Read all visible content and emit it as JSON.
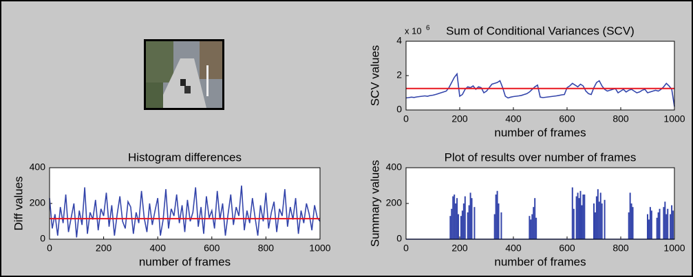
{
  "chart_data": [
    {
      "type": "line",
      "title": "Sum of Conditional Variances (SCV)",
      "xlabel": "number of frames",
      "ylabel": "SCV values",
      "y_scale_label": "x 10",
      "y_scale_exponent": "6",
      "x": [
        0,
        10,
        20,
        30,
        40,
        50,
        60,
        70,
        80,
        90,
        100,
        110,
        120,
        130,
        140,
        150,
        160,
        170,
        180,
        190,
        200,
        210,
        220,
        230,
        240,
        250,
        260,
        270,
        280,
        290,
        300,
        310,
        320,
        330,
        340,
        350,
        360,
        370,
        380,
        390,
        400,
        410,
        420,
        430,
        440,
        450,
        460,
        470,
        480,
        490,
        500,
        510,
        520,
        530,
        540,
        550,
        560,
        570,
        580,
        590,
        600,
        610,
        620,
        630,
        640,
        650,
        660,
        670,
        680,
        690,
        700,
        710,
        720,
        730,
        740,
        750,
        760,
        770,
        780,
        790,
        800,
        810,
        820,
        830,
        840,
        850,
        860,
        870,
        880,
        890,
        900,
        910,
        920,
        930,
        940,
        950,
        960,
        970,
        980,
        990,
        1000
      ],
      "values": [
        0.7,
        0.72,
        0.75,
        0.73,
        0.76,
        0.78,
        0.8,
        0.82,
        0.8,
        0.84,
        0.86,
        0.9,
        0.95,
        1.0,
        1.05,
        1.1,
        1.3,
        1.6,
        1.9,
        2.1,
        0.8,
        0.9,
        1.2,
        1.35,
        1.3,
        1.4,
        1.2,
        1.35,
        1.3,
        1.0,
        1.1,
        1.3,
        1.5,
        1.55,
        1.6,
        1.7,
        1.3,
        0.8,
        0.7,
        0.75,
        0.78,
        0.8,
        0.82,
        0.85,
        0.9,
        0.95,
        1.05,
        1.2,
        1.35,
        1.45,
        0.75,
        0.72,
        0.74,
        0.76,
        0.78,
        0.8,
        0.82,
        0.85,
        0.88,
        0.9,
        1.3,
        1.4,
        1.55,
        1.45,
        1.35,
        1.5,
        1.4,
        1.1,
        0.95,
        0.9,
        1.3,
        1.6,
        1.7,
        1.4,
        1.2,
        1.1,
        1.15,
        1.2,
        1.25,
        1.0,
        1.1,
        1.2,
        1.05,
        1.15,
        1.2,
        1.1,
        1.0,
        1.05,
        1.15,
        1.2,
        1.0,
        1.05,
        1.1,
        1.15,
        1.1,
        1.2,
        1.35,
        1.55,
        1.4,
        1.2,
        0.2
      ],
      "color": "#3344aa",
      "threshold": 1.25,
      "threshold_color": "#e8141e",
      "xlim": [
        0,
        1000
      ],
      "ylim": [
        0,
        4
      ],
      "xticks": [
        0,
        200,
        400,
        600,
        800,
        1000
      ],
      "yticks": [
        0,
        2,
        4
      ]
    },
    {
      "type": "line",
      "title": "Histogram differences",
      "xlabel": "number of frames",
      "ylabel": "Diff values",
      "x": [
        0,
        10,
        20,
        30,
        40,
        50,
        60,
        70,
        80,
        90,
        100,
        110,
        120,
        130,
        140,
        150,
        160,
        170,
        180,
        190,
        200,
        210,
        220,
        230,
        240,
        250,
        260,
        270,
        280,
        290,
        300,
        310,
        320,
        330,
        340,
        350,
        360,
        370,
        380,
        390,
        400,
        410,
        420,
        430,
        440,
        450,
        460,
        470,
        480,
        490,
        500,
        510,
        520,
        530,
        540,
        550,
        560,
        570,
        580,
        590,
        600,
        610,
        620,
        630,
        640,
        650,
        660,
        670,
        680,
        690,
        700,
        710,
        720,
        730,
        740,
        750,
        760,
        770,
        780,
        790,
        800,
        810,
        820,
        830,
        840,
        850,
        860,
        870,
        880,
        890,
        900,
        910,
        920,
        930,
        940,
        950,
        960,
        970,
        980,
        990,
        1000
      ],
      "values": [
        230,
        60,
        140,
        20,
        180,
        90,
        250,
        40,
        120,
        200,
        10,
        160,
        80,
        290,
        30,
        150,
        110,
        220,
        50,
        170,
        130,
        260,
        70,
        190,
        20,
        140,
        240,
        100,
        60,
        210,
        180,
        30,
        150,
        90,
        270,
        120,
        40,
        200,
        80,
        160,
        230,
        20,
        110,
        280,
        60,
        170,
        130,
        250,
        90,
        190,
        40,
        220,
        100,
        150,
        290,
        70,
        180,
        30,
        240,
        120,
        160,
        60,
        270,
        110,
        200,
        20,
        140,
        250,
        80,
        180,
        130,
        300,
        50,
        160,
        90,
        230,
        120,
        20,
        190,
        100,
        260,
        60,
        150,
        210,
        40,
        170,
        130,
        280,
        70,
        180,
        110,
        230,
        30,
        160,
        90,
        200,
        140,
        50,
        190,
        120,
        100
      ],
      "color": "#3344aa",
      "threshold": 115,
      "threshold_color": "#e8141e",
      "xlim": [
        0,
        1000
      ],
      "ylim": [
        0,
        400
      ],
      "xticks": [
        0,
        200,
        400,
        600,
        800,
        1000
      ],
      "yticks": [
        0,
        200,
        400
      ]
    },
    {
      "type": "spike",
      "title": "Plot of results over number of frames",
      "xlabel": "number of frames",
      "ylabel": "Summary values",
      "x": [
        165,
        170,
        175,
        180,
        185,
        190,
        195,
        205,
        210,
        215,
        220,
        230,
        235,
        240,
        245,
        255,
        330,
        335,
        340,
        345,
        355,
        460,
        465,
        470,
        475,
        480,
        485,
        620,
        625,
        635,
        640,
        645,
        650,
        655,
        660,
        665,
        700,
        705,
        710,
        715,
        720,
        725,
        730,
        740,
        830,
        835,
        840,
        845,
        900,
        905,
        910,
        915,
        935,
        940,
        945,
        960,
        965,
        970,
        975,
        985,
        990,
        995
      ],
      "values": [
        130,
        170,
        240,
        250,
        200,
        230,
        140,
        130,
        160,
        200,
        240,
        150,
        190,
        260,
        230,
        180,
        140,
        250,
        270,
        200,
        150,
        130,
        110,
        140,
        180,
        230,
        120,
        290,
        170,
        240,
        260,
        230,
        270,
        190,
        250,
        250,
        200,
        150,
        240,
        280,
        210,
        260,
        200,
        220,
        150,
        260,
        200,
        180,
        140,
        110,
        180,
        160,
        120,
        150,
        170,
        180,
        210,
        140,
        170,
        140,
        190,
        160
      ],
      "color": "#3344aa",
      "xlim": [
        0,
        1000
      ],
      "ylim": [
        0,
        400
      ],
      "xticks": [
        0,
        200,
        400,
        600,
        800,
        1000
      ],
      "yticks": [
        0,
        200,
        400
      ]
    }
  ]
}
